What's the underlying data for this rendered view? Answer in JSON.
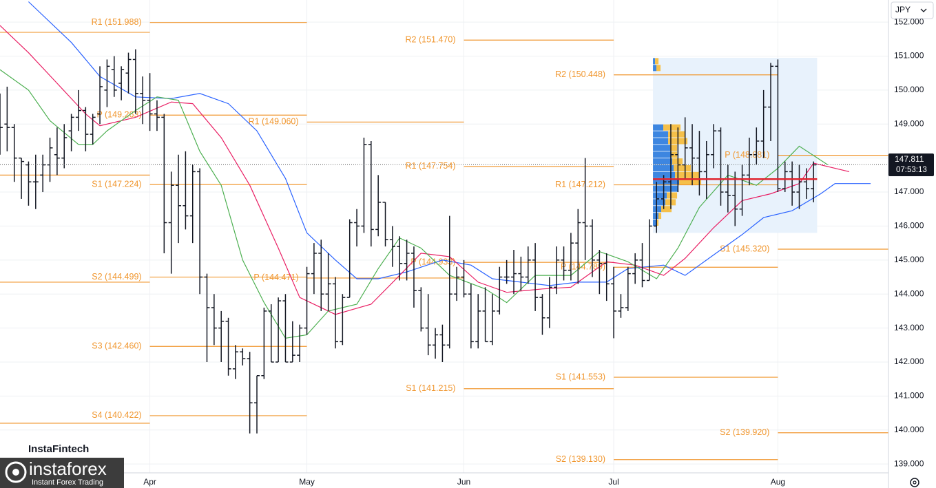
{
  "currency": "JPY",
  "branding": {
    "provider": "InstaFintech",
    "logo": "instaforex",
    "tagline": "Instant Forex Trading"
  },
  "chart_data": {
    "type": "ohlc",
    "color": "#131722",
    "grid": true,
    "xlim": [
      0,
      124.5
    ],
    "xticks": [
      {
        "value": 21,
        "label": "Apr"
      },
      {
        "value": 43,
        "label": "May"
      },
      {
        "value": 65,
        "label": "Jun"
      },
      {
        "value": 86,
        "label": "Jul"
      },
      {
        "value": 109,
        "label": "Aug"
      }
    ],
    "ylim": [
      138.74,
      152.65
    ],
    "yticks": [
      {
        "value": 139,
        "label": "139.000"
      },
      {
        "value": 140,
        "label": "140.000"
      },
      {
        "value": 141,
        "label": "141.000"
      },
      {
        "value": 142,
        "label": "142.000"
      },
      {
        "value": 143,
        "label": "143.000"
      },
      {
        "value": 144,
        "label": "144.000"
      },
      {
        "value": 145,
        "label": "145.000"
      },
      {
        "value": 146,
        "label": "146.000"
      },
      {
        "value": 147,
        "label": "147.000"
      },
      {
        "value": 148,
        "label": "148.000"
      },
      {
        "value": 149,
        "label": "149.000"
      },
      {
        "value": 150,
        "label": "150.000"
      },
      {
        "value": 151,
        "label": "151.000"
      },
      {
        "value": 152,
        "label": "152.000"
      }
    ],
    "x": [
      0,
      1,
      2,
      3,
      4,
      5,
      6,
      7,
      8,
      9,
      10,
      11,
      12,
      13,
      14,
      15,
      16,
      17,
      18,
      19,
      20,
      21,
      22,
      23,
      24,
      25,
      26,
      27,
      28,
      29,
      30,
      31,
      32,
      33,
      34,
      35,
      36,
      37,
      38,
      39,
      40,
      41,
      42,
      43,
      44,
      45,
      46,
      47,
      48,
      49,
      50,
      51,
      52,
      53,
      54,
      55,
      56,
      57,
      58,
      59,
      60,
      61,
      62,
      63,
      64,
      65,
      66,
      67,
      68,
      69,
      70,
      71,
      72,
      73,
      74,
      75,
      76,
      77,
      78,
      79,
      80,
      81,
      82,
      83,
      84,
      85,
      86,
      87,
      88,
      89,
      90,
      91,
      92,
      93,
      94,
      95,
      96,
      97,
      98,
      99,
      100,
      101,
      102,
      103,
      104,
      105,
      106,
      107,
      108,
      109,
      110,
      111,
      112,
      113,
      114
    ],
    "open": [
      149.4,
      149.0,
      148.9,
      148.0,
      147.8,
      147.3,
      147.5,
      147.8,
      148.1,
      148.0,
      148.8,
      149.2,
      149.4,
      148.7,
      149.3,
      150.0,
      150.6,
      150.2,
      150.5,
      150.9,
      149.9,
      149.7,
      149.3,
      149.2,
      146.1,
      147.2,
      146.6,
      146.3,
      147.6,
      144.5,
      143.6,
      143.0,
      143.2,
      141.8,
      142.3,
      142.1,
      140.8,
      141.6,
      143.5,
      142.0,
      143.8,
      142.0,
      142.2,
      143.0,
      144.6,
      145.2,
      144.0,
      144.3,
      142.6,
      143.9,
      146.1,
      146.0,
      148.4,
      145.9,
      146.7,
      145.6,
      145.4,
      144.9,
      145.2,
      144.1,
      143.0,
      142.5,
      142.8,
      142.5,
      144.0,
      144.5,
      144.0,
      142.6,
      143.5,
      142.6,
      143.5,
      144.5,
      144.5,
      144.6,
      144.5,
      145.0,
      143.9,
      143.3,
      144.2,
      145.0,
      144.7,
      145.5,
      146.1,
      146.0,
      145.0,
      144.9,
      144.3,
      143.5,
      143.6,
      144.6,
      145.0,
      144.4,
      146.0,
      146.8,
      147.3,
      148.1,
      147.8,
      148.3,
      148.0,
      147.6,
      148.1,
      148.8,
      147.0,
      146.9,
      146.5,
      147.5,
      148.1,
      148.5,
      149.5,
      150.7,
      147.1,
      147.6,
      147.0,
      147.3,
      147.1
    ],
    "high": [
      149.9,
      150.1,
      149.0,
      148.0,
      147.9,
      148.1,
      148.1,
      148.6,
      148.9,
      149.0,
      149.3,
      150.0,
      149.5,
      149.3,
      150.7,
      150.9,
      151.0,
      150.7,
      151.1,
      151.2,
      150.4,
      150.5,
      149.7,
      149.3,
      147.6,
      148.1,
      148.2,
      147.8,
      147.7,
      144.6,
      144.0,
      143.5,
      143.3,
      142.5,
      142.4,
      142.3,
      141.6,
      143.6,
      143.7,
      143.9,
      144.0,
      143.2,
      143.1,
      144.8,
      145.5,
      145.6,
      145.2,
      144.5,
      144.0,
      146.2,
      146.5,
      148.6,
      148.5,
      147.5,
      146.7,
      146.0,
      145.7,
      145.6,
      145.4,
      144.2,
      144.0,
      143.0,
      143.1,
      146.3,
      144.8,
      145.0,
      144.3,
      144.0,
      144.2,
      144.0,
      144.8,
      145.0,
      145.3,
      145.1,
      145.4,
      145.5,
      144.0,
      144.5,
      145.4,
      145.4,
      145.8,
      146.5,
      148.0,
      146.2,
      145.3,
      145.2,
      144.8,
      144.0,
      144.8,
      145.2,
      145.5,
      146.2,
      147.3,
      147.5,
      149.0,
      148.9,
      149.2,
      149.0,
      148.8,
      148.5,
      149.0,
      148.9,
      147.8,
      147.6,
      147.8,
      148.6,
      148.9,
      150.0,
      150.8,
      150.9,
      147.9,
      147.9,
      147.8,
      147.7,
      147.9
    ],
    "low": [
      148.1,
      148.2,
      147.3,
      146.8,
      146.6,
      146.5,
      147.0,
      147.3,
      147.5,
      147.7,
      148.2,
      148.8,
      148.2,
      148.4,
      149.0,
      149.5,
      149.8,
      149.7,
      149.9,
      149.3,
      149.0,
      148.8,
      148.8,
      145.2,
      144.6,
      145.5,
      145.9,
      145.5,
      144.0,
      142.0,
      142.5,
      142.0,
      141.6,
      141.5,
      141.9,
      139.9,
      139.9,
      141.5,
      142.0,
      142.0,
      142.0,
      142.0,
      142.0,
      142.8,
      144.0,
      143.5,
      143.5,
      142.4,
      142.5,
      143.9,
      145.4,
      145.8,
      145.4,
      145.7,
      145.4,
      144.8,
      144.4,
      144.4,
      143.6,
      142.9,
      142.2,
      142.1,
      142.0,
      142.4,
      143.8,
      143.9,
      142.4,
      142.4,
      142.6,
      142.5,
      143.4,
      144.3,
      144.0,
      144.1,
      144.3,
      143.5,
      142.8,
      143.0,
      144.0,
      144.4,
      144.4,
      144.3,
      145.0,
      144.5,
      144.0,
      143.8,
      142.7,
      143.3,
      143.5,
      144.3,
      144.2,
      144.4,
      145.8,
      146.5,
      146.5,
      147.0,
      147.4,
      147.2,
      146.9,
      146.8,
      147.7,
      146.6,
      146.4,
      146.0,
      146.3,
      147.2,
      147.8,
      148.0,
      148.5,
      147.0,
      147.0,
      146.6,
      146.5,
      146.8,
      146.7
    ],
    "close": [
      148.9,
      148.9,
      148.0,
      147.9,
      147.3,
      147.3,
      147.8,
      148.3,
      148.0,
      148.6,
      149.2,
      149.4,
      148.7,
      149.2,
      150.1,
      150.7,
      150.0,
      150.6,
      150.9,
      149.9,
      149.7,
      149.3,
      149.2,
      146.1,
      147.2,
      146.6,
      146.3,
      147.6,
      144.5,
      143.6,
      143.0,
      143.2,
      141.8,
      142.3,
      142.1,
      140.8,
      141.6,
      143.5,
      142.0,
      143.8,
      142.0,
      142.2,
      143.0,
      144.6,
      145.2,
      144.0,
      144.3,
      142.6,
      143.9,
      146.1,
      146.0,
      148.4,
      145.9,
      146.7,
      145.6,
      145.4,
      144.9,
      145.2,
      144.1,
      143.0,
      142.5,
      142.8,
      142.5,
      144.0,
      144.5,
      144.0,
      142.6,
      143.5,
      142.6,
      143.5,
      144.5,
      144.5,
      144.6,
      144.5,
      145.0,
      143.9,
      143.3,
      144.2,
      145.0,
      144.7,
      145.5,
      146.1,
      146.0,
      145.0,
      144.9,
      144.3,
      143.5,
      143.6,
      144.6,
      145.0,
      144.4,
      146.0,
      146.8,
      147.3,
      148.1,
      147.8,
      148.3,
      148.0,
      147.6,
      148.1,
      148.8,
      147.0,
      146.9,
      146.5,
      147.5,
      148.1,
      148.5,
      149.5,
      150.7,
      147.1,
      147.6,
      147.0,
      147.3,
      147.1,
      147.8
    ],
    "moving_averages": [
      {
        "color": "#2962ff",
        "x": [
          4,
          10,
          14,
          19,
          24,
          28,
          32,
          36,
          40,
          43,
          47,
          50,
          53,
          57,
          62,
          66,
          69,
          73,
          77,
          81,
          85,
          88,
          93,
          96,
          100,
          104,
          107,
          111,
          115,
          117,
          122
        ],
        "values": [
          152.6,
          151.4,
          150.4,
          149.8,
          149.75,
          149.9,
          149.6,
          148.8,
          147.4,
          145.8,
          145.0,
          144.45,
          144.45,
          144.65,
          145.0,
          144.85,
          144.45,
          144.35,
          144.25,
          144.35,
          144.35,
          144.75,
          144.85,
          144.55,
          145.15,
          145.75,
          146.25,
          146.45,
          146.95,
          147.25,
          147.25
        ]
      },
      {
        "color": "#e91e63",
        "x": [
          0,
          4,
          8,
          12,
          14,
          19,
          24,
          27,
          31,
          35,
          39,
          42,
          47,
          52,
          56,
          59,
          63,
          67,
          71,
          76,
          80,
          85,
          89,
          93,
          96,
          100,
          104,
          108,
          112,
          114,
          119
        ],
        "values": [
          151.9,
          151.1,
          150.2,
          149.3,
          148.95,
          149.2,
          149.65,
          149.6,
          148.6,
          147.2,
          145.35,
          143.9,
          143.4,
          143.7,
          144.55,
          145.2,
          145.1,
          144.35,
          144.05,
          144.15,
          144.2,
          144.95,
          144.85,
          144.55,
          145.05,
          145.95,
          146.75,
          146.95,
          147.25,
          147.85,
          147.6
        ]
      },
      {
        "color": "#4caf50",
        "x": [
          0,
          4,
          7,
          11,
          13,
          15,
          19,
          22,
          25,
          28,
          31,
          34,
          37,
          40,
          43,
          46,
          50,
          53,
          56,
          59,
          63,
          68,
          71,
          75,
          80,
          84,
          88,
          92,
          95,
          98,
          102,
          106,
          109,
          112,
          116
        ],
        "values": [
          150.6,
          150.0,
          149.1,
          148.4,
          148.4,
          148.8,
          149.4,
          149.8,
          149.7,
          148.2,
          147.2,
          145.0,
          143.75,
          142.7,
          142.8,
          143.5,
          143.7,
          144.75,
          145.65,
          145.35,
          144.55,
          144.15,
          143.75,
          144.55,
          144.55,
          145.25,
          144.95,
          144.45,
          145.35,
          146.55,
          147.5,
          147.2,
          147.7,
          148.35,
          147.8
        ]
      }
    ],
    "pivot_color": "#f0962e",
    "pivots": [
      {
        "label": null,
        "value": 151.7,
        "x": [
          0,
          21
        ]
      },
      {
        "label": null,
        "value": 147.5,
        "x": [
          0,
          21
        ]
      },
      {
        "label": null,
        "value": 144.35,
        "x": [
          0,
          21
        ]
      },
      {
        "label": null,
        "value": 140.2,
        "x": [
          0,
          21
        ]
      },
      {
        "label": "R1 (151.988)",
        "value": 151.988,
        "x": [
          21,
          43
        ]
      },
      {
        "label": "P (149.263)",
        "value": 149.263,
        "x": [
          21,
          43
        ]
      },
      {
        "label": "S1 (147.224)",
        "value": 147.224,
        "x": [
          21,
          43
        ]
      },
      {
        "label": "S2 (144.499)",
        "value": 144.499,
        "x": [
          21,
          43
        ]
      },
      {
        "label": "S3 (142.460)",
        "value": 142.46,
        "x": [
          21,
          43
        ]
      },
      {
        "label": "S4 (140.422)",
        "value": 140.422,
        "x": [
          21,
          43
        ]
      },
      {
        "label": "R1 (149.060)",
        "value": 149.06,
        "x": [
          43,
          65
        ]
      },
      {
        "label": "P (144.471)",
        "value": 144.471,
        "x": [
          43,
          65
        ]
      },
      {
        "label": "R2 (151.470)",
        "value": 151.47,
        "x": [
          65,
          86
        ]
      },
      {
        "label": "R1 (147.754)",
        "value": 147.754,
        "x": [
          65,
          86
        ]
      },
      {
        "label": "P (144.933)",
        "value": 144.933,
        "x": [
          65,
          86
        ]
      },
      {
        "label": "S1 (141.215)",
        "value": 141.215,
        "x": [
          65,
          86
        ]
      },
      {
        "label": "R2 (150.448)",
        "value": 150.448,
        "x": [
          86,
          109
        ]
      },
      {
        "label": "R1 (147.212)",
        "value": 147.212,
        "x": [
          86,
          109
        ]
      },
      {
        "label": "P (144.789)",
        "value": 144.789,
        "x": [
          86,
          109
        ]
      },
      {
        "label": "S1 (141.553)",
        "value": 141.553,
        "x": [
          86,
          109
        ]
      },
      {
        "label": "S2 (139.130)",
        "value": 139.13,
        "x": [
          86,
          109
        ]
      },
      {
        "label": "P (148.081)",
        "value": 148.081,
        "x": [
          109,
          124.5
        ]
      },
      {
        "label": "S1 (145.320)",
        "value": 145.32,
        "x": [
          109,
          124.5
        ]
      },
      {
        "label": "S2 (139.920)",
        "value": 139.92,
        "x": [
          109,
          124.5
        ]
      }
    ],
    "volume_profile": {
      "x": [
        91.5,
        114.5
      ],
      "price_range": [
        145.8,
        150.95
      ],
      "poc": 147.38,
      "box_color": "#e8f2fc",
      "buy_color": "#3d86e0",
      "sell_color": "#f5c04a",
      "poc_color": "#e0242f",
      "prices": [
        150.85,
        150.65,
        148.9,
        148.7,
        148.5,
        148.3,
        148.1,
        147.9,
        147.7,
        147.5,
        147.3,
        147.1,
        146.9,
        146.7,
        146.5,
        146.3,
        146.1
      ],
      "buy": [
        3,
        5,
        15,
        22,
        22,
        25,
        27,
        28,
        30,
        32,
        38,
        36,
        20,
        18,
        12,
        8,
        5
      ],
      "sell": [
        5,
        6,
        25,
        25,
        28,
        10,
        8,
        15,
        25,
        35,
        32,
        0,
        15,
        15,
        15,
        4,
        3
      ]
    },
    "last_price": {
      "value": 147.811,
      "countdown": "07:53:13"
    }
  }
}
